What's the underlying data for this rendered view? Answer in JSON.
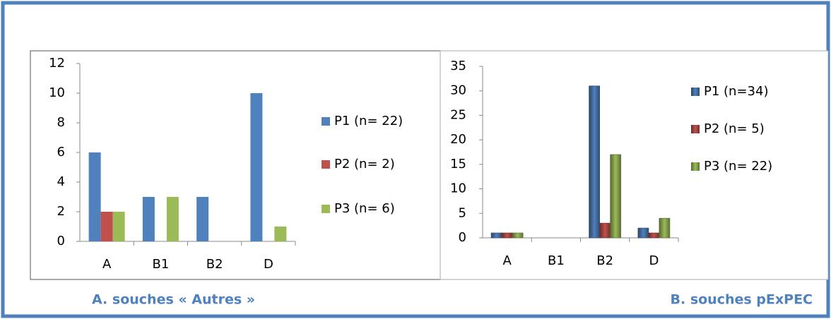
{
  "chart_data": [
    {
      "type": "bar",
      "caption": "A. souches « Autres »",
      "categories": [
        "A",
        "B1",
        "B2",
        "D"
      ],
      "series": [
        {
          "name": "P1  (n= 22)",
          "color": "#4f81bd",
          "values": [
            6,
            3,
            3,
            10
          ]
        },
        {
          "name": "P2  (n= 2)",
          "color": "#c0504d",
          "values": [
            2,
            0,
            0,
            0
          ]
        },
        {
          "name": "P3  (n= 6)",
          "color": "#9bbb59",
          "values": [
            2,
            3,
            0,
            1
          ]
        }
      ],
      "ylim": [
        0,
        12
      ],
      "yticks": [
        0,
        2,
        4,
        6,
        8,
        10,
        12
      ],
      "grid": false,
      "legend": "right"
    },
    {
      "type": "bar",
      "caption": "B. souches pExPEC",
      "categories": [
        "A",
        "B1",
        "B2",
        "D"
      ],
      "series": [
        {
          "name": "P1 (n=34)",
          "color": "#4f81bd",
          "values": [
            1,
            0,
            31,
            2
          ]
        },
        {
          "name": "P2  (n= 5)",
          "color": "#c0504d",
          "values": [
            1,
            0,
            3,
            1
          ]
        },
        {
          "name": "P3  (n= 22)",
          "color": "#9bbb59",
          "values": [
            1,
            0,
            17,
            4
          ]
        }
      ],
      "ylim": [
        0,
        35
      ],
      "yticks": [
        0,
        5,
        10,
        15,
        20,
        25,
        30,
        35
      ],
      "grid": false,
      "legend": "right"
    }
  ]
}
